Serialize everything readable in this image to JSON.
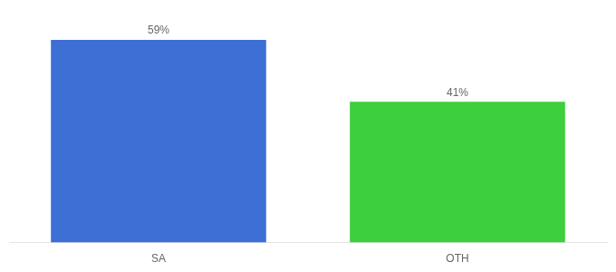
{
  "chart_data": {
    "type": "bar",
    "categories": [
      "SA",
      "OTH"
    ],
    "values": [
      59,
      41
    ],
    "value_labels": [
      "59%",
      "41%"
    ],
    "colors": [
      "#3d6fd4",
      "#3dcf3d"
    ],
    "ylim": [
      0,
      68
    ],
    "data_labels": true,
    "tick_labels": "x",
    "grid": false
  }
}
